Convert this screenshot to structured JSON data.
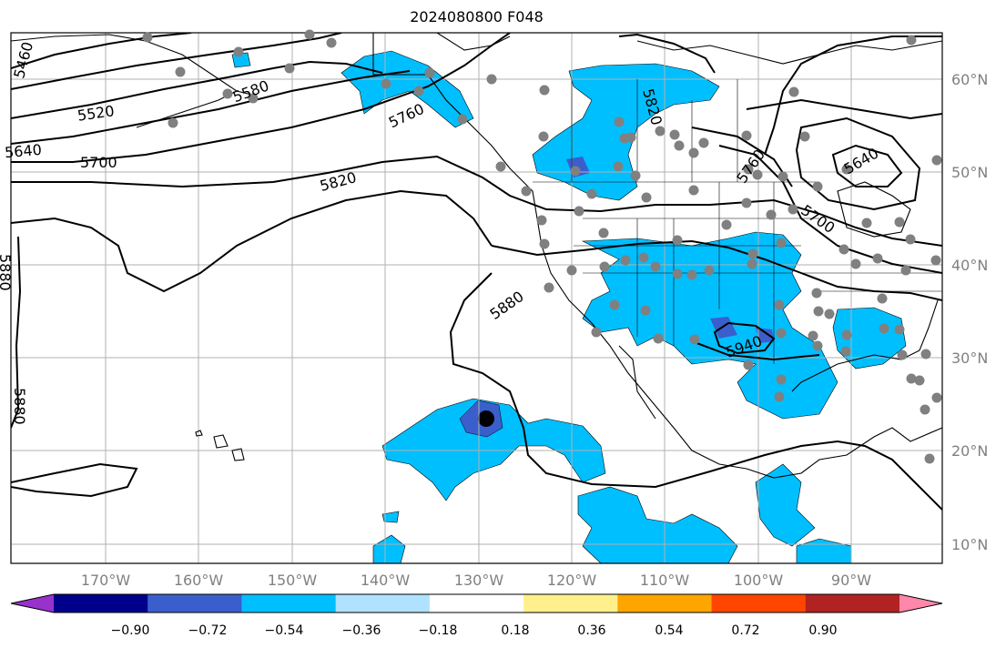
{
  "title": "2024080800 F048",
  "lat_labels": [
    "60°N",
    "50°N",
    "40°N",
    "30°N",
    "20°N",
    "10°N"
  ],
  "lon_labels": [
    "170°W",
    "160°W",
    "150°W",
    "140°W",
    "130°W",
    "120°W",
    "110°W",
    "100°W",
    "90°W"
  ],
  "colorbar": {
    "ticks": [
      "−0.90",
      "−0.72",
      "−0.54",
      "−0.36",
      "−0.18",
      "0.18",
      "0.36",
      "0.54",
      "0.72",
      "0.90"
    ],
    "colors": [
      "#9932cc",
      "#00008b",
      "#3a5fcd",
      "#00bfff",
      "#b0e2ff",
      "#ffffff",
      "#fff08c",
      "#ffa500",
      "#ff4500",
      "#b22222",
      "#ff88aa"
    ]
  },
  "contour_labels": [
    "5460",
    "5580",
    "5520",
    "5640",
    "5700",
    "5820",
    "5880",
    "5880",
    "5880",
    "5940",
    "5760",
    "5640",
    "5700",
    "5760",
    "5820"
  ],
  "colors": {
    "shading": "#00bfff",
    "station": "#808080",
    "grid": "#b0b0b0",
    "contour": "#000000"
  }
}
